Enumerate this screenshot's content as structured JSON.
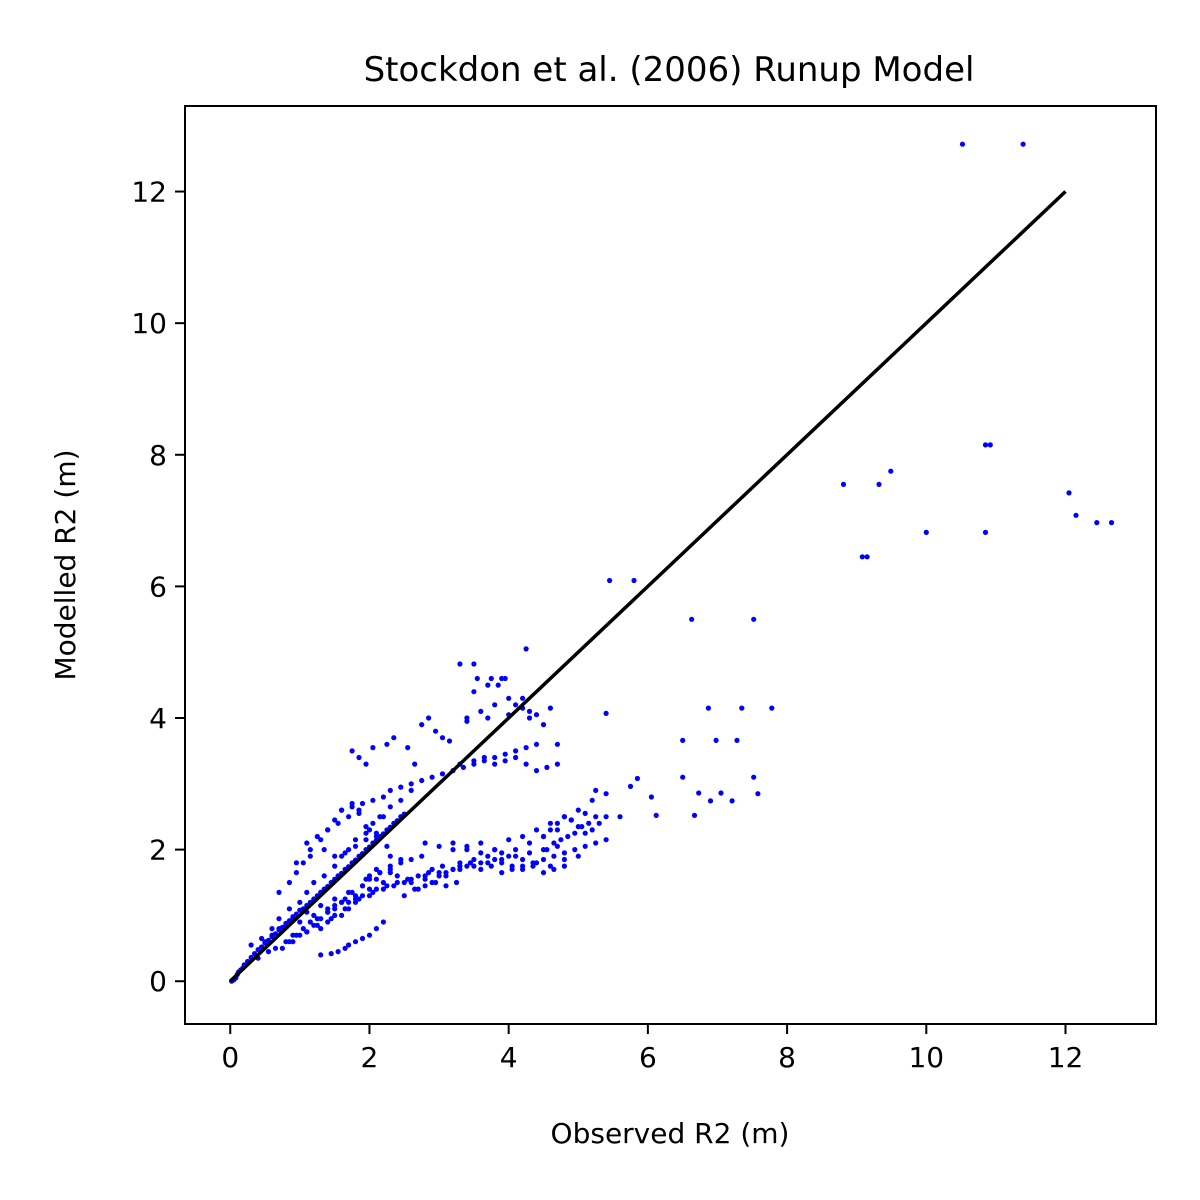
{
  "chart_data": {
    "type": "scatter",
    "title": "Stockdon et al. (2006) Runup Model",
    "xlabel": "Observed R2 (m)",
    "ylabel": "Modelled R2 (m)",
    "xlim": [
      -0.65,
      13.3
    ],
    "ylim": [
      -0.65,
      13.3
    ],
    "xticks": [
      0,
      2,
      4,
      6,
      8,
      10,
      12
    ],
    "yticks": [
      0,
      2,
      4,
      6,
      8,
      10,
      12
    ],
    "xtick_labels": [
      "0",
      "2",
      "4",
      "6",
      "8",
      "10",
      "12"
    ],
    "ytick_labels": [
      "0",
      "2",
      "4",
      "6",
      "8",
      "10",
      "12"
    ],
    "grid": false,
    "point_color": "#0000ff",
    "line_color": "#000000",
    "reference_line": {
      "x": [
        0,
        12
      ],
      "y": [
        0,
        12
      ]
    },
    "points": {
      "x": [
        10.52,
        11.39,
        10.85,
        10.92,
        8.81,
        9.32,
        9.49,
        10.0,
        10.85,
        9.08,
        9.15,
        12.05,
        12.15,
        12.45,
        12.66,
        5.45,
        5.8,
        6.63,
        7.52,
        6.87,
        7.35,
        7.78,
        6.5,
        6.98,
        7.28,
        7.52,
        7.58,
        6.5,
        6.9,
        6.67,
        6.73,
        7.05,
        7.21,
        5.75,
        5.85,
        6.05,
        6.12,
        5.4,
        5.6,
        5.25,
        0.02,
        0.05,
        0.08,
        0.1,
        0.12,
        0.15,
        0.18,
        0.2,
        0.25,
        0.3,
        0.35,
        0.4,
        0.45,
        0.5,
        0.55,
        0.6,
        0.65,
        0.7,
        0.75,
        0.8,
        0.85,
        0.9,
        0.95,
        1.0,
        1.05,
        1.1,
        1.15,
        1.2,
        1.25,
        1.3,
        1.35,
        1.4,
        1.45,
        1.5,
        1.55,
        1.6,
        1.65,
        1.7,
        1.75,
        1.8,
        1.85,
        1.9,
        1.95,
        2.0,
        2.05,
        2.1,
        2.15,
        2.2,
        2.25,
        2.3,
        2.35,
        2.4,
        2.45,
        2.5,
        0.3,
        0.45,
        0.6,
        0.7,
        0.85,
        1.0,
        1.1,
        1.2,
        1.35,
        1.5,
        1.6,
        1.7,
        1.8,
        1.95,
        2.05,
        2.2,
        2.3,
        2.45,
        2.6,
        0.4,
        0.55,
        0.65,
        0.8,
        0.9,
        1.05,
        1.15,
        1.25,
        1.4,
        1.5,
        1.65,
        1.75,
        1.9,
        2.0,
        2.15,
        2.3,
        2.45,
        0.7,
        0.85,
        0.95,
        1.05,
        1.15,
        1.3,
        1.4,
        1.5,
        1.6,
        1.75,
        1.85,
        1.95,
        2.1,
        2.25,
        1.3,
        1.45,
        1.55,
        1.65,
        1.7,
        1.8,
        1.9,
        2.0,
        2.1,
        2.2,
        0.9,
        1.0,
        1.1,
        1.2,
        1.3,
        1.4,
        1.5,
        1.6,
        1.1,
        1.25,
        1.4,
        1.55,
        1.7,
        1.85,
        2.0,
        2.15,
        1.5,
        1.65,
        1.8,
        1.95,
        2.1,
        0.95,
        1.15,
        1.35,
        1.75,
        1.85,
        1.95,
        2.05,
        2.25,
        2.35,
        2.55,
        2.65,
        2.75,
        2.85,
        2.95,
        3.05,
        3.15,
        2.5,
        2.7,
        2.9,
        3.1,
        3.3,
        3.5,
        3.7,
        3.9,
        4.1,
        4.3,
        4.5,
        4.7,
        2.6,
        2.8,
        3.0,
        3.2,
        3.4,
        3.6,
        3.8,
        3.2,
        3.4,
        3.6,
        3.8,
        4.0,
        4.2,
        4.4,
        4.6,
        4.8,
        5.0,
        5.2,
        5.4,
        3.3,
        3.5,
        3.7,
        3.9,
        4.1,
        4.3,
        4.5,
        4.7,
        4.9,
        5.1,
        2.6,
        2.8,
        3.0,
        3.1,
        3.2,
        3.3,
        3.45,
        3.6,
        3.75,
        3.9,
        4.05,
        4.2,
        4.35,
        4.5,
        4.65,
        4.8,
        3.3,
        3.5,
        3.65,
        3.8,
        3.95,
        4.1,
        4.25,
        4.4,
        4.55,
        4.7,
        3.4,
        3.7,
        4.0,
        4.3,
        4.6,
        3.4,
        3.6,
        3.8,
        4.0,
        4.2,
        4.4,
        3.5,
        3.7,
        3.9,
        4.1,
        4.3,
        4.5,
        4.7,
        3.55,
        3.75,
        3.85,
        3.95,
        4.2,
        4.25,
        3.3,
        3.5,
        2.0,
        2.15,
        2.3,
        2.45,
        2.6,
        2.75,
        2.9,
        3.05,
        2.1,
        2.25,
        2.4,
        2.55,
        2.7,
        2.85,
        1.7,
        1.8,
        1.9,
        2.05,
        2.2,
        2.35,
        2.5,
        2.65,
        2.8,
        2.95,
        3.1,
        3.25,
        2.8,
        3.0,
        3.2,
        3.4,
        3.6,
        3.8,
        4.0,
        4.2,
        4.4,
        4.6,
        4.8,
        5.0,
        4.5,
        4.6,
        4.7,
        4.8,
        4.9,
        5.0,
        5.1,
        5.2,
        5.3,
        5.4,
        4.55,
        4.65,
        4.75,
        4.85,
        4.95,
        5.05,
        5.15,
        5.25,
        3.9,
        4.05,
        4.2,
        4.35,
        4.5,
        4.65,
        4.8,
        4.95,
        5.1,
        5.25,
        5.4,
        2.3,
        2.6,
        2.9,
        3.2,
        3.5,
        3.8,
        4.1,
        4.4,
        2.45,
        2.75,
        3.05,
        3.35,
        3.65,
        3.95,
        4.25,
        1.0,
        1.2,
        1.4,
        1.6,
        1.8,
        2.0,
        2.2,
        2.4,
        1.1,
        1.3,
        1.5,
        1.7,
        1.9,
        2.1,
        2.3,
        1.6,
        1.7,
        1.8,
        2.0,
        1.95,
        2.1,
        2.3,
        1.3,
        1.4,
        1.5,
        1.65,
        1.85,
        0.75,
        0.85,
        0.95,
        1.1,
        1.25,
        1.45,
        1.6,
        1.75,
        1.9,
        2.05,
        2.2,
        0.5,
        0.6,
        0.7,
        0.8,
        0.9
      ],
      "y": [
        12.72,
        12.72,
        8.15,
        8.15,
        7.55,
        7.55,
        7.75,
        6.82,
        6.82,
        6.45,
        6.45,
        7.42,
        7.08,
        6.97,
        6.97,
        6.09,
        6.09,
        5.5,
        5.5,
        4.15,
        4.15,
        4.15,
        3.66,
        3.66,
        3.66,
        3.1,
        2.85,
        3.1,
        2.74,
        2.52,
        2.86,
        2.86,
        2.74,
        2.96,
        3.08,
        2.8,
        2.52,
        4.07,
        2.5,
        2.9,
        0.0,
        0.02,
        0.05,
        0.1,
        0.14,
        0.17,
        0.2,
        0.25,
        0.3,
        0.36,
        0.42,
        0.48,
        0.52,
        0.58,
        0.62,
        0.68,
        0.72,
        0.78,
        0.82,
        0.88,
        0.92,
        0.98,
        1.02,
        1.08,
        1.1,
        1.15,
        1.2,
        1.25,
        1.3,
        1.35,
        1.4,
        1.44,
        1.5,
        1.55,
        1.6,
        1.64,
        1.7,
        1.74,
        1.8,
        1.84,
        1.9,
        1.94,
        2.0,
        2.04,
        2.1,
        2.14,
        2.2,
        2.24,
        2.3,
        2.34,
        2.4,
        2.44,
        2.5,
        2.54,
        0.55,
        0.65,
        0.8,
        0.95,
        1.1,
        1.2,
        1.35,
        1.5,
        1.6,
        1.75,
        1.9,
        2.0,
        2.15,
        2.25,
        2.4,
        2.5,
        2.65,
        2.75,
        2.9,
        0.35,
        0.45,
        0.5,
        0.6,
        0.7,
        0.8,
        0.9,
        0.95,
        1.05,
        1.15,
        1.25,
        1.35,
        1.45,
        1.55,
        1.65,
        1.75,
        1.85,
        1.35,
        1.5,
        1.65,
        1.8,
        2.0,
        2.15,
        2.3,
        2.45,
        2.6,
        2.7,
        2.55,
        2.35,
        2.2,
        2.05,
        0.4,
        0.42,
        0.45,
        0.5,
        0.55,
        0.6,
        0.65,
        0.7,
        0.8,
        0.9,
        0.6,
        0.7,
        0.75,
        0.85,
        0.95,
        1.05,
        1.1,
        1.2,
        2.1,
        2.2,
        2.3,
        2.4,
        2.5,
        2.6,
        2.3,
        2.5,
        1.9,
        1.95,
        2.05,
        2.15,
        2.25,
        1.8,
        1.9,
        2.0,
        3.5,
        3.4,
        3.3,
        3.55,
        3.6,
        3.7,
        3.55,
        3.3,
        3.9,
        4.0,
        3.8,
        3.7,
        3.65,
        1.3,
        1.4,
        1.5,
        1.6,
        1.7,
        1.75,
        1.8,
        1.85,
        1.9,
        1.95,
        2.0,
        2.05,
        1.55,
        1.6,
        1.65,
        1.7,
        1.75,
        1.8,
        1.85,
        2.0,
        2.05,
        2.1,
        2.0,
        2.15,
        2.2,
        2.3,
        2.4,
        2.5,
        2.6,
        2.75,
        2.85,
        1.8,
        1.85,
        1.9,
        1.95,
        2.0,
        2.1,
        2.2,
        2.3,
        2.45,
        2.55,
        1.5,
        1.55,
        1.6,
        1.65,
        1.7,
        1.75,
        1.8,
        1.7,
        1.75,
        1.8,
        1.75,
        1.7,
        1.75,
        1.65,
        1.7,
        1.75,
        3.3,
        3.35,
        3.4,
        3.3,
        3.35,
        3.4,
        3.3,
        3.2,
        3.25,
        3.3,
        3.95,
        4.0,
        4.05,
        4.1,
        4.15,
        4.0,
        4.1,
        4.2,
        4.3,
        4.15,
        4.05,
        4.4,
        4.5,
        4.6,
        4.2,
        4.0,
        3.9,
        3.6,
        4.6,
        4.6,
        4.5,
        4.6,
        4.3,
        5.05,
        4.82,
        4.82,
        1.6,
        1.65,
        1.7,
        1.8,
        1.85,
        1.9,
        1.7,
        1.75,
        1.4,
        1.45,
        1.5,
        1.55,
        1.6,
        1.65,
        1.2,
        1.25,
        1.3,
        1.35,
        1.4,
        1.45,
        1.5,
        1.4,
        1.45,
        1.5,
        1.45,
        1.5,
        2.1,
        2.05,
        2.1,
        2.0,
        1.95,
        2.0,
        1.9,
        1.85,
        1.8,
        1.75,
        1.85,
        1.9,
        2.2,
        2.3,
        2.4,
        2.5,
        2.45,
        2.35,
        2.25,
        2.3,
        2.4,
        2.5,
        2.0,
        2.1,
        2.15,
        2.2,
        2.25,
        2.35,
        2.4,
        2.5,
        1.65,
        1.7,
        1.75,
        1.8,
        1.85,
        1.9,
        1.95,
        2.0,
        2.05,
        2.1,
        2.15,
        2.9,
        3.0,
        3.1,
        3.2,
        3.3,
        3.4,
        3.5,
        3.6,
        2.95,
        3.05,
        3.15,
        3.25,
        3.35,
        3.45,
        3.55,
        0.9,
        1.0,
        1.1,
        1.2,
        1.3,
        1.4,
        1.5,
        1.6,
        1.05,
        1.15,
        1.25,
        1.35,
        1.45,
        1.55,
        1.65,
        1.0,
        1.1,
        1.2,
        1.3,
        1.55,
        1.7,
        1.9,
        0.8,
        0.9,
        1.0,
        1.1,
        1.25,
        0.5,
        0.6,
        0.7,
        0.75,
        0.85,
        0.95,
        2.6,
        2.65,
        2.7,
        2.75,
        2.8,
        0.6,
        0.7,
        0.8,
        0.85,
        0.95
      ]
    }
  }
}
